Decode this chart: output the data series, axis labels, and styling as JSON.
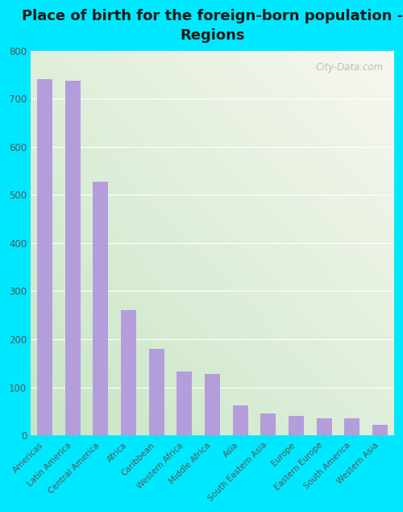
{
  "categories": [
    "Americas",
    "Latin America",
    "Central America",
    "Africa",
    "Caribbean",
    "Western Africa",
    "Middle Africa",
    "Asia",
    "South Eastern Asia",
    "Europe",
    "Eastern Europe",
    "South America",
    "Western Asia"
  ],
  "values": [
    740,
    738,
    528,
    260,
    180,
    133,
    127,
    63,
    45,
    40,
    36,
    36,
    22
  ],
  "bar_color": "#b39ddb",
  "title": "Place of birth for the foreign-born population -\nRegions",
  "title_fontsize": 13,
  "ylim": [
    0,
    800
  ],
  "yticks": [
    0,
    100,
    200,
    300,
    400,
    500,
    600,
    700,
    800
  ],
  "bg_outer": "#00e8ff",
  "bg_inner_left_bottom": "#c8e6c4",
  "bg_inner_right_top": "#f8f8f0",
  "grid_color": "#ffffff",
  "watermark": "City-Data.com",
  "bar_width": 0.55
}
